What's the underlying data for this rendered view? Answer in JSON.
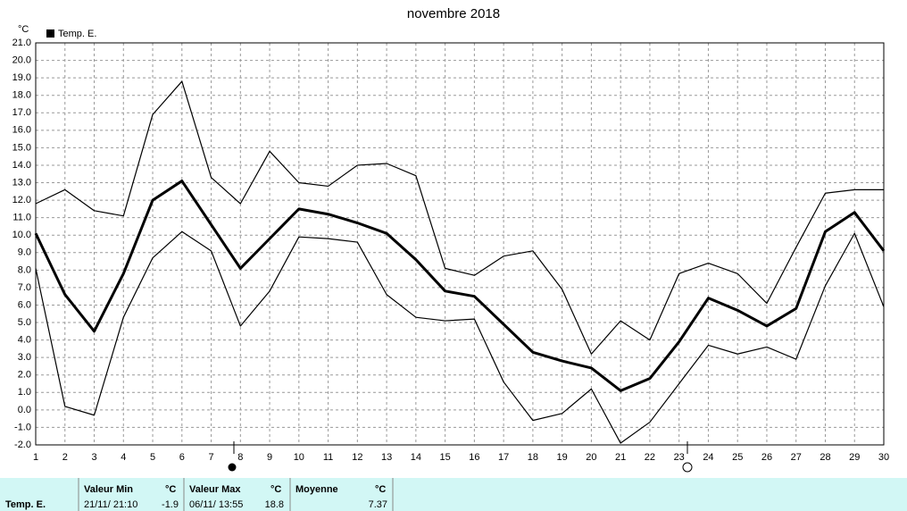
{
  "chart_data": {
    "type": "line",
    "title": "novembre 2018",
    "y_label": "°C",
    "x": [
      1,
      2,
      3,
      4,
      5,
      6,
      7,
      8,
      9,
      10,
      11,
      12,
      13,
      14,
      15,
      16,
      17,
      18,
      19,
      20,
      21,
      22,
      23,
      24,
      25,
      26,
      27,
      28,
      29,
      30
    ],
    "xlim": [
      1,
      30
    ],
    "xticks": [
      1,
      2,
      3,
      4,
      5,
      6,
      7,
      8,
      9,
      10,
      11,
      12,
      13,
      14,
      15,
      16,
      17,
      18,
      19,
      20,
      21,
      22,
      23,
      24,
      25,
      26,
      27,
      28,
      29,
      30
    ],
    "ylim": [
      -2,
      21
    ],
    "yticks": [
      {
        "value": 21,
        "label": "21.0"
      },
      {
        "value": 20,
        "label": "20.0"
      },
      {
        "value": 19,
        "label": "19.0"
      },
      {
        "value": 18,
        "label": "18.0"
      },
      {
        "value": 17,
        "label": "17.0"
      },
      {
        "value": 16,
        "label": "16.0"
      },
      {
        "value": 15,
        "label": "15.0"
      },
      {
        "value": 14,
        "label": "14.0"
      },
      {
        "value": 13,
        "label": "13.0"
      },
      {
        "value": 12,
        "label": "12.0"
      },
      {
        "value": 11,
        "label": "11.0"
      },
      {
        "value": 10,
        "label": "10.0"
      },
      {
        "value": 9,
        "label": "9.0"
      },
      {
        "value": 8,
        "label": "8.0"
      },
      {
        "value": 7,
        "label": "7.0"
      },
      {
        "value": 6,
        "label": "6.0"
      },
      {
        "value": 5,
        "label": "5.0"
      },
      {
        "value": 4,
        "label": "4.0"
      },
      {
        "value": 3,
        "label": "3.0"
      },
      {
        "value": 2,
        "label": "2.0"
      },
      {
        "value": 1,
        "label": "1.0"
      },
      {
        "value": 0,
        "label": "0.0"
      },
      {
        "value": -1,
        "label": "-1.0"
      },
      {
        "value": -2,
        "label": "-2.0"
      }
    ],
    "grid": true,
    "series": [
      {
        "color": "#000000",
        "line_width": 1.2,
        "values": [
          11.8,
          12.6,
          11.4,
          11.1,
          16.9,
          18.8,
          13.3,
          11.8,
          14.8,
          13.0,
          12.8,
          14.0,
          14.1,
          13.4,
          8.1,
          7.7,
          8.8,
          9.1,
          6.9,
          3.2,
          5.1,
          4.0,
          7.8,
          8.4,
          7.8,
          6.1,
          9.3,
          12.4,
          12.6,
          12.6
        ]
      },
      {
        "name": "Temp. E.",
        "color": "#000000",
        "line_width": 3,
        "values": [
          10.1,
          6.6,
          4.5,
          7.8,
          12.0,
          13.1,
          10.6,
          8.1,
          9.8,
          11.5,
          11.2,
          10.7,
          10.1,
          8.6,
          6.8,
          6.5,
          4.9,
          3.3,
          2.8,
          2.4,
          1.1,
          1.8,
          3.9,
          6.4,
          5.7,
          4.8,
          5.8,
          10.2,
          11.3,
          9.1
        ]
      },
      {
        "color": "#000000",
        "line_width": 1.2,
        "values": [
          8.1,
          0.2,
          -0.3,
          5.3,
          8.7,
          10.2,
          9.1,
          4.8,
          6.8,
          9.9,
          9.8,
          9.6,
          6.6,
          5.3,
          5.1,
          5.2,
          1.6,
          -0.6,
          -0.2,
          1.2,
          -1.9,
          -0.7,
          1.5,
          3.7,
          3.2,
          3.6,
          2.9,
          7.1,
          10.1,
          5.9
        ]
      }
    ]
  },
  "summary": {
    "row_label": "Temp. E.",
    "min": {
      "title": "Valeur Min",
      "unit": "°C",
      "when": "21/11/ 21:10",
      "value": -1.9
    },
    "max": {
      "title": "Valeur Max",
      "unit": "°C",
      "when": "06/11/ 13:55",
      "value": 18.8
    },
    "mean": {
      "title": "Moyenne",
      "unit": "°C",
      "value": 7.37
    }
  }
}
